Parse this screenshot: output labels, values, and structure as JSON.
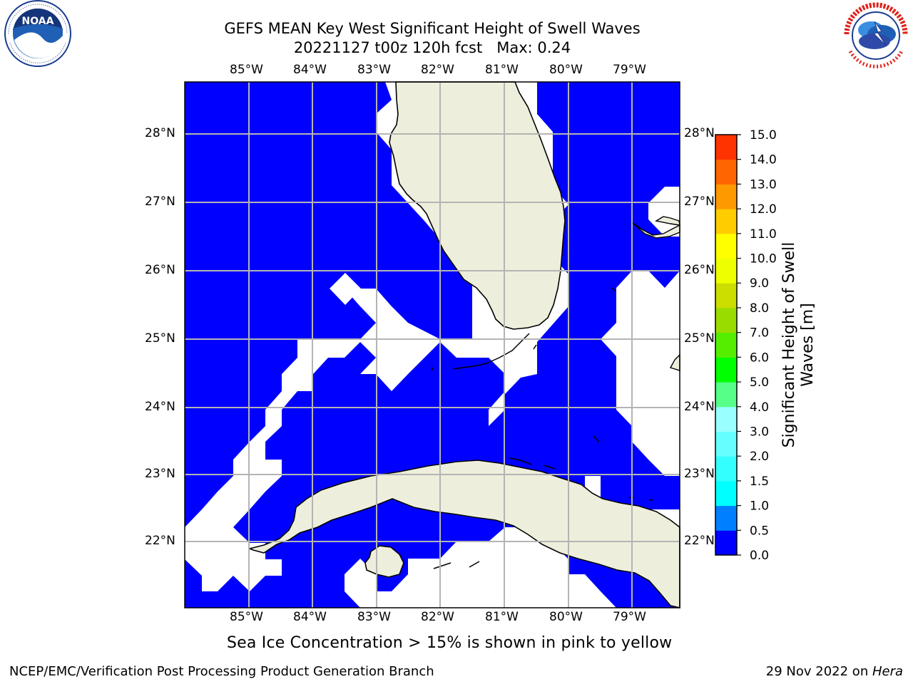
{
  "header": {
    "title_line1": "GEFS MEAN Key West Significant Height of Swell Waves",
    "title_line2": "20221127 t00z 120h fcst   Max: 0.24",
    "left_logo": "noaa-logo",
    "right_logo": "national-weather-service-logo"
  },
  "map": {
    "lon_ticks": [
      "85°W",
      "84°W",
      "83°W",
      "82°W",
      "81°W",
      "80°W",
      "79°W"
    ],
    "lat_ticks": [
      "28°N",
      "27°N",
      "26°N",
      "25°N",
      "24°N",
      "23°N",
      "22°N"
    ],
    "colors": {
      "ocean_low": "#0000ff",
      "no_data": "#ffffff",
      "land": "#eeeedd",
      "grid": "#b4b4b4"
    }
  },
  "colorbar": {
    "label": "Significant Height of Swell Waves [m]",
    "label_line1": "Significant Height of Swell",
    "label_line2": "Waves [m]",
    "ticks": [
      "0.0",
      "0.5",
      "1.0",
      "1.5",
      "2.0",
      "3.0",
      "4.0",
      "5.0",
      "6.0",
      "7.0",
      "8.0",
      "9.0",
      "10.0",
      "11.0",
      "12.0",
      "13.0",
      "14.0",
      "15.0"
    ],
    "colors": [
      "#0000ff",
      "#0080ff",
      "#00ffff",
      "#33ffff",
      "#66ffff",
      "#99ffff",
      "#55ff88",
      "#00ff00",
      "#55ee00",
      "#99dd00",
      "#ccdd00",
      "#eeff00",
      "#ffff00",
      "#ffcc00",
      "#ff9900",
      "#ff6600",
      "#ff3300",
      "#ff0000"
    ]
  },
  "footer": {
    "subtitle": "Sea Ice Concentration > 15% is shown in pink to yellow",
    "left": "NCEP/EMC/Verification Post Processing Product Generation Branch",
    "right_date": "29 Nov 2022 on ",
    "right_host": "Hera"
  }
}
